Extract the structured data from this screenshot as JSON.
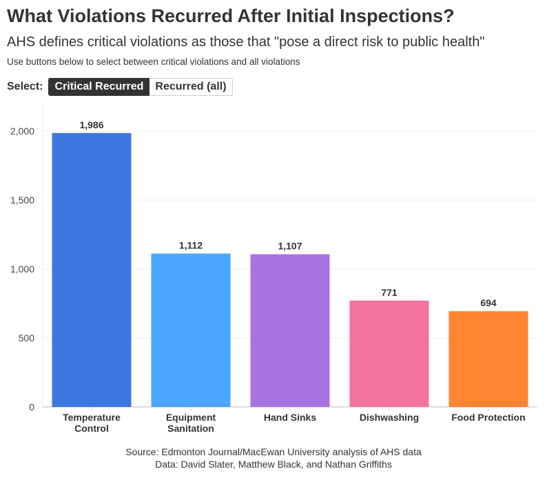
{
  "header": {
    "title": "What Violations Recurred After Initial Inspections?",
    "subtitle": "AHS defines critical violations as those that \"pose a direct risk to public health\"",
    "description": "Use buttons below to select between critical violations and all violations"
  },
  "selector": {
    "label": "Select:",
    "options": [
      "Critical Recurred",
      "Recurred (all)"
    ],
    "selected": "Critical Recurred"
  },
  "chart_data": {
    "type": "bar",
    "categories": [
      [
        "Temperature",
        "Control"
      ],
      [
        "Equipment",
        "Sanitation"
      ],
      [
        "Hand Sinks"
      ],
      [
        "Dishwashing"
      ],
      [
        "Food Protection"
      ]
    ],
    "values": [
      1986,
      1112,
      1107,
      771,
      694
    ],
    "value_labels": [
      "1,986",
      "1,112",
      "1,107",
      "771",
      "694"
    ],
    "colors": [
      "#3d78e0",
      "#4aa6ff",
      "#a873e0",
      "#f472a0",
      "#ff8533"
    ],
    "yticks": [
      0,
      500,
      1000,
      1500,
      2000
    ],
    "ytick_labels": [
      "0",
      "500",
      "1,000",
      "1,500",
      "2,000"
    ],
    "ylim": [
      0,
      2000
    ],
    "grid": true
  },
  "footer": {
    "source": "Source: Edmonton Journal/MacEwan University analysis of AHS data",
    "credits": "Data: David Slater, Matthew Black, and Nathan Griffiths"
  }
}
